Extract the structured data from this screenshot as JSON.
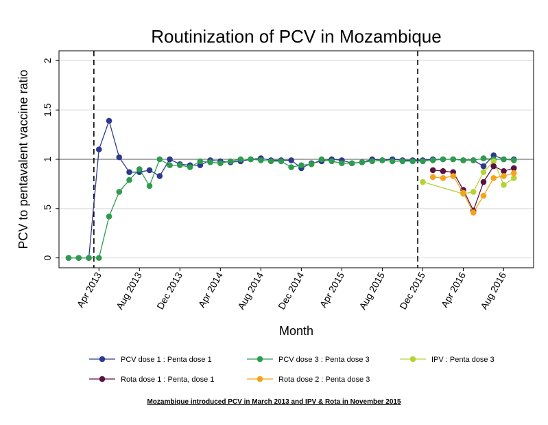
{
  "chart_data": {
    "type": "line",
    "title": "Routinization of PCV in Mozambique",
    "xlabel": "Month",
    "ylabel": "PCV to pentavalent vaccine ratio",
    "ylim": [
      -0.1,
      2.1
    ],
    "y_ticks": [
      0,
      0.5,
      1,
      1.5,
      2
    ],
    "y_tick_labels": [
      "0",
      ".5",
      "1",
      "1.5",
      "2"
    ],
    "x_range": [
      "2013-01",
      "2016-10"
    ],
    "x_ticks": [
      "2013-04",
      "2013-08",
      "2013-12",
      "2014-04",
      "2014-08",
      "2014-12",
      "2015-04",
      "2015-08",
      "2015-12",
      "2016-04",
      "2016-08"
    ],
    "x_tick_labels": [
      "Apr 2013",
      "Aug 2013",
      "Dec 2013",
      "Apr 2014",
      "Aug 2014",
      "Dec 2014",
      "Apr 2015",
      "Aug 2015",
      "Dec 2015",
      "Apr 2016",
      "Aug 2016"
    ],
    "reference_line_y": 1,
    "vertical_markers": [
      "2013-03",
      "2015-11"
    ],
    "grid": true,
    "legend_position": "bottom",
    "series": [
      {
        "name": "PCV dose 1 : Penta dose 1",
        "color": "#2d3a8c",
        "x": [
          "2013-01",
          "2013-02",
          "2013-03",
          "2013-04",
          "2013-05",
          "2013-06",
          "2013-07",
          "2013-08",
          "2013-09",
          "2013-10",
          "2013-11",
          "2013-12",
          "2014-01",
          "2014-02",
          "2014-03",
          "2014-04",
          "2014-05",
          "2014-06",
          "2014-07",
          "2014-08",
          "2014-09",
          "2014-10",
          "2014-11",
          "2014-12",
          "2015-01",
          "2015-02",
          "2015-03",
          "2015-04",
          "2015-05",
          "2015-06",
          "2015-07",
          "2015-08",
          "2015-09",
          "2015-10",
          "2015-11",
          "2015-12",
          "2016-01",
          "2016-02",
          "2016-03",
          "2016-04",
          "2016-05",
          "2016-06",
          "2016-07",
          "2016-08",
          "2016-09"
        ],
        "y": [
          0,
          0,
          0,
          1.1,
          1.39,
          1.02,
          0.87,
          0.87,
          0.89,
          0.83,
          1.0,
          0.95,
          0.94,
          0.94,
          0.99,
          0.98,
          0.97,
          0.98,
          1.0,
          1.01,
          0.99,
          0.99,
          0.99,
          0.91,
          0.96,
          0.98,
          1.0,
          0.99,
          0.96,
          0.97,
          1.0,
          0.99,
          1.0,
          0.99,
          0.99,
          0.99,
          1.0,
          1.0,
          1.0,
          0.99,
          0.99,
          0.93,
          1.04,
          1.0,
          1.0
        ]
      },
      {
        "name": "PCV dose 3 : Penta dose 3",
        "color": "#2e9c4e",
        "x": [
          "2013-01",
          "2013-02",
          "2013-03",
          "2013-04",
          "2013-05",
          "2013-06",
          "2013-07",
          "2013-08",
          "2013-09",
          "2013-10",
          "2013-11",
          "2013-12",
          "2014-01",
          "2014-02",
          "2014-03",
          "2014-04",
          "2014-05",
          "2014-06",
          "2014-07",
          "2014-08",
          "2014-09",
          "2014-10",
          "2014-11",
          "2014-12",
          "2015-01",
          "2015-02",
          "2015-03",
          "2015-04",
          "2015-05",
          "2015-06",
          "2015-07",
          "2015-08",
          "2015-09",
          "2015-10",
          "2015-11",
          "2015-12",
          "2016-01",
          "2016-02",
          "2016-03",
          "2016-04",
          "2016-05",
          "2016-06",
          "2016-07",
          "2016-08",
          "2016-09"
        ],
        "y": [
          0,
          0,
          0,
          0,
          0.42,
          0.67,
          0.79,
          0.9,
          0.73,
          1.0,
          0.94,
          0.94,
          0.92,
          0.98,
          0.97,
          0.96,
          0.98,
          1.0,
          1.0,
          0.99,
          0.98,
          0.98,
          0.92,
          0.94,
          0.95,
          1.0,
          0.98,
          0.96,
          0.96,
          0.97,
          0.98,
          0.99,
          0.98,
          0.98,
          0.98,
          0.98,
          0.99,
          1.0,
          1.0,
          0.99,
          0.99,
          1.01,
          1.0,
          1.0,
          0.99
        ]
      },
      {
        "name": "IPV : Penta dose 3",
        "color": "#b5d334",
        "x": [
          "2015-12",
          "2016-04",
          "2016-05",
          "2016-06",
          "2016-07",
          "2016-08",
          "2016-09"
        ],
        "y": [
          0.77,
          0.65,
          0.67,
          0.87,
          0.98,
          0.74,
          0.81
        ]
      },
      {
        "name": "Rota dose 1 : Penta, dose 1",
        "color": "#5a1240",
        "x": [
          "2016-01",
          "2016-02",
          "2016-03",
          "2016-04",
          "2016-05",
          "2016-06",
          "2016-07",
          "2016-08",
          "2016-09"
        ],
        "y": [
          0.89,
          0.88,
          0.87,
          0.69,
          0.48,
          0.77,
          0.93,
          0.88,
          0.91
        ]
      },
      {
        "name": "Rota dose 2 : Penta dose 3",
        "color": "#f5a21c",
        "x": [
          "2016-01",
          "2016-02",
          "2016-03",
          "2016-04",
          "2016-05",
          "2016-06",
          "2016-07",
          "2016-08",
          "2016-09"
        ],
        "y": [
          0.82,
          0.81,
          0.83,
          0.66,
          0.46,
          0.63,
          0.81,
          0.83,
          0.86
        ]
      }
    ],
    "footnote": "Mozambique introduced PCV in March 2013 and IPV & Rota in November 2015"
  }
}
